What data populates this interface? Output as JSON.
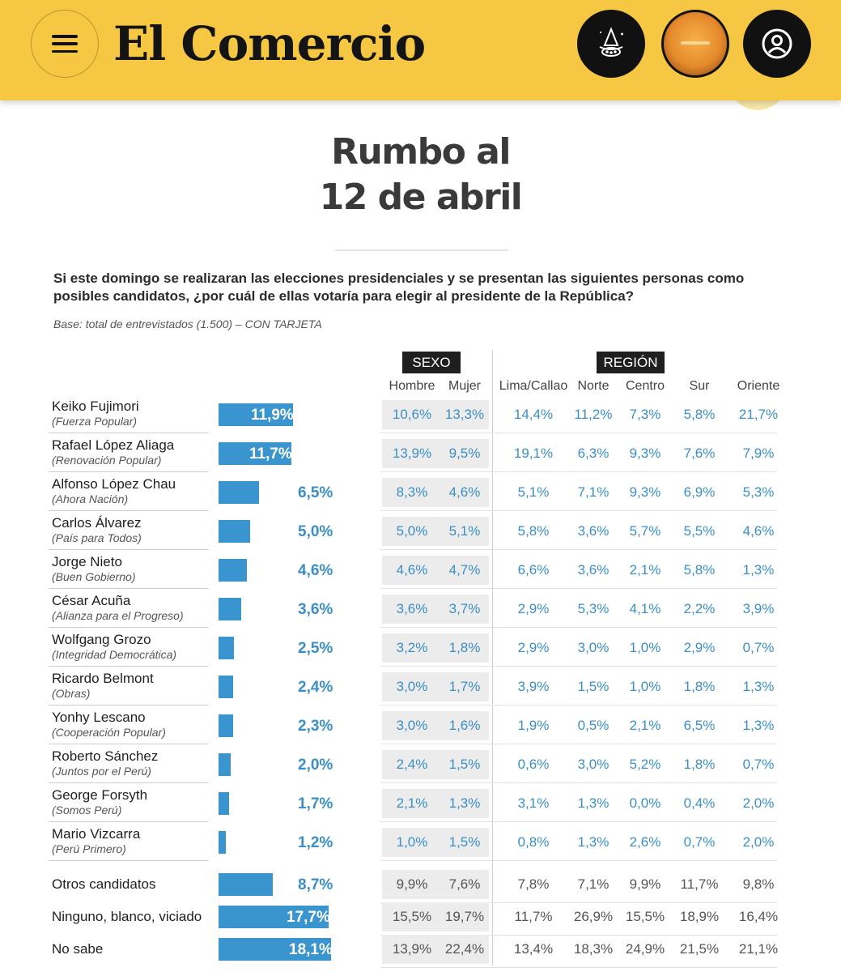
{
  "header": {
    "logo": "El Comercio",
    "icons": [
      "menu-icon",
      "magic-hat-icon",
      "promo-icon",
      "user-icon"
    ]
  },
  "title": {
    "line1": "Rumbo al",
    "line2": "12 de abril"
  },
  "question": "Si este domingo se realizaran las elecciones presidenciales y se presentan las siguientes personas como posibles candidatos, ¿por cuál de ellas votaría para elegir al presidente de la República?",
  "base": "Base: total de entrevistados (1.500) – CON TARJETA",
  "groups": {
    "sexo": "SEXO",
    "region": "REGIÓN"
  },
  "columns": [
    "Hombre",
    "Mujer",
    "Lima/Callao",
    "Norte",
    "Centro",
    "Sur",
    "Oriente"
  ],
  "colors": {
    "bar": "#3a95cf",
    "value_text": "#3b8fc6",
    "header_yellow": "#f6c743"
  },
  "chart_data": {
    "type": "bar",
    "unit": "%",
    "rows": [
      {
        "name": "Keiko Fujimori",
        "party": "(Fuerza Popular)",
        "total": 11.9,
        "total_label": "11,9%",
        "values": [
          "10,6%",
          "13,3%",
          "14,4%",
          "11,2%",
          "7,3%",
          "5,8%",
          "21,7%"
        ]
      },
      {
        "name": "Rafael López Aliaga",
        "party": "(Renovación Popular)",
        "total": 11.7,
        "total_label": "11,7%",
        "values": [
          "13,9%",
          "9,5%",
          "19,1%",
          "6,3%",
          "9,3%",
          "7,6%",
          "7,9%"
        ]
      },
      {
        "name": "Alfonso López Chau",
        "party": "(Ahora Nación)",
        "total": 6.5,
        "total_label": "6,5%",
        "values": [
          "8,3%",
          "4,6%",
          "5,1%",
          "7,1%",
          "9,3%",
          "6,9%",
          "5,3%"
        ]
      },
      {
        "name": "Carlos Álvarez",
        "party": "(País para Todos)",
        "total": 5.0,
        "total_label": "5,0%",
        "values": [
          "5,0%",
          "5,1%",
          "5,8%",
          "3,6%",
          "5,7%",
          "5,5%",
          "4,6%"
        ]
      },
      {
        "name": "Jorge Nieto",
        "party": "(Buen Gobierno)",
        "total": 4.6,
        "total_label": "4,6%",
        "values": [
          "4,6%",
          "4,7%",
          "6,6%",
          "3,6%",
          "2,1%",
          "5,8%",
          "1,3%"
        ]
      },
      {
        "name": "César Acuña",
        "party": "(Alianza para el Progreso)",
        "total": 3.6,
        "total_label": "3,6%",
        "values": [
          "3,6%",
          "3,7%",
          "2,9%",
          "5,3%",
          "4,1%",
          "2,2%",
          "3,9%"
        ]
      },
      {
        "name": "Wolfgang Grozo",
        "party": "(Integridad Democrática)",
        "total": 2.5,
        "total_label": "2,5%",
        "values": [
          "3,2%",
          "1,8%",
          "2,9%",
          "3,0%",
          "1,0%",
          "2,9%",
          "0,7%"
        ]
      },
      {
        "name": "Ricardo Belmont",
        "party": "(Obras)",
        "total": 2.4,
        "total_label": "2,4%",
        "values": [
          "3,0%",
          "1,7%",
          "3,9%",
          "1,5%",
          "1,0%",
          "1,8%",
          "1,3%"
        ]
      },
      {
        "name": "Yonhy Lescano",
        "party": "(Cooperación Popular)",
        "total": 2.3,
        "total_label": "2,3%",
        "values": [
          "3,0%",
          "1,6%",
          "1,9%",
          "0,5%",
          "2,1%",
          "6,5%",
          "1,3%"
        ]
      },
      {
        "name": "Roberto Sánchez",
        "party": "(Juntos por el Perú)",
        "total": 2.0,
        "total_label": "2,0%",
        "values": [
          "2,4%",
          "1,5%",
          "0,6%",
          "3,0%",
          "5,2%",
          "1,8%",
          "0,7%"
        ]
      },
      {
        "name": "George Forsyth",
        "party": "(Somos Perú)",
        "total": 1.7,
        "total_label": "1,7%",
        "values": [
          "2,1%",
          "1,3%",
          "3,1%",
          "1,3%",
          "0,0%",
          "0,4%",
          "2,0%"
        ]
      },
      {
        "name": "Mario Vizcarra",
        "party": "(Perú Primero)",
        "total": 1.2,
        "total_label": "1,2%",
        "values": [
          "1,0%",
          "1,5%",
          "0,8%",
          "1,3%",
          "2,6%",
          "0,7%",
          "2,0%"
        ]
      },
      {
        "name": "Otros candidatos",
        "party": "",
        "total": 8.7,
        "total_label": "8,7%",
        "values": [
          "9,9%",
          "7,6%",
          "7,8%",
          "7,1%",
          "9,9%",
          "11,7%",
          "9,8%"
        ]
      },
      {
        "name": "Ninguno, blanco, viciado",
        "party": "",
        "total": 17.7,
        "total_label": "17,7%",
        "values": [
          "15,5%",
          "19,7%",
          "11,7%",
          "26,9%",
          "15,5%",
          "18,9%",
          "16,4%"
        ]
      },
      {
        "name": "No sabe",
        "party": "",
        "total": 18.1,
        "total_label": "18,1%",
        "values": [
          "13,9%",
          "22,4%",
          "13,4%",
          "18,3%",
          "24,9%",
          "21,5%",
          "21,1%"
        ]
      }
    ]
  }
}
